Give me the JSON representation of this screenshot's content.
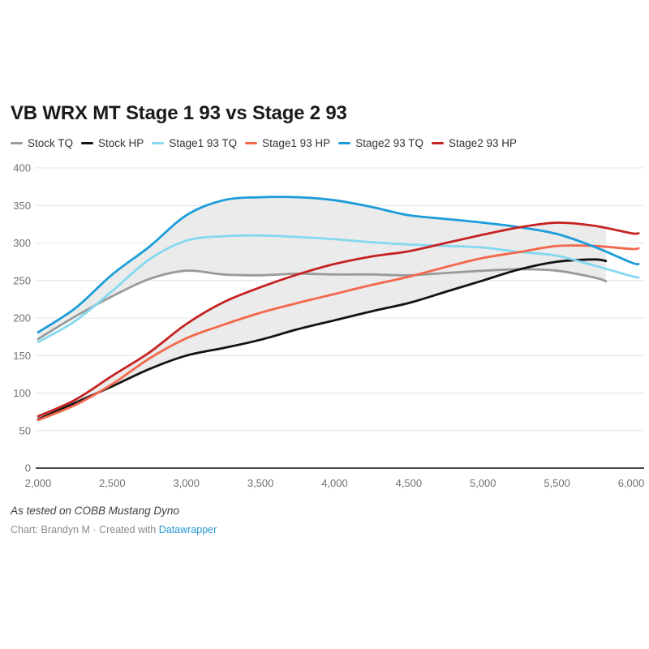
{
  "title": "VB WRX MT Stage 1 93 vs Stage 2 93",
  "legend": [
    {
      "label": "Stock TQ",
      "color": "#9a9a9a"
    },
    {
      "label": "Stock HP",
      "color": "#131313"
    },
    {
      "label": "Stage1 93 TQ",
      "color": "#84d9f1"
    },
    {
      "label": "Stage1 93 HP",
      "color": "#f4674b"
    },
    {
      "label": "Stage2 93 TQ",
      "color": "#1b9dd9"
    },
    {
      "label": "Stage2 93 HP",
      "color": "#c62222"
    }
  ],
  "footer": {
    "note": "As tested on COBB Mustang Dyno",
    "byline_prefix": "Chart: Brandyn M · Created with ",
    "link_label": "Datawrapper",
    "link_color": "#2397d3"
  },
  "chart_data": {
    "type": "line",
    "title": "VB WRX MT Stage 1 93 vs Stage 2 93",
    "xlabel": "",
    "ylabel": "",
    "xlim": [
      2000,
      6050
    ],
    "ylim": [
      0,
      400
    ],
    "grid": true,
    "legend_position": "top",
    "x_tick_values": [
      2000,
      2500,
      3000,
      3500,
      4000,
      4500,
      5000,
      5500,
      6000
    ],
    "x_tick_labels": [
      "2,000",
      "2,500",
      "3,000",
      "3,500",
      "4,000",
      "4,500",
      "5,000",
      "5,500",
      "6,000"
    ],
    "y_tick_values": [
      0,
      50,
      100,
      150,
      200,
      250,
      300,
      350,
      400
    ],
    "y_tick_labels": [
      "0",
      "50",
      "100",
      "150",
      "200",
      "250",
      "300",
      "350",
      "400"
    ],
    "series": [
      {
        "name": "Stock TQ",
        "color": "#9a9a9a",
        "x": [
          2000,
          2250,
          2500,
          2750,
          3000,
          3250,
          3500,
          3750,
          4000,
          4250,
          4500,
          4750,
          5000,
          5250,
          5500,
          5750,
          5830
        ],
        "values": [
          172,
          202,
          229,
          252,
          263,
          258,
          257,
          259,
          258,
          258,
          257,
          260,
          263,
          265,
          263,
          254,
          249
        ]
      },
      {
        "name": "Stock HP",
        "color": "#131313",
        "x": [
          2000,
          2250,
          2500,
          2750,
          3000,
          3250,
          3500,
          3750,
          4000,
          4250,
          4500,
          4750,
          5000,
          5250,
          5500,
          5750,
          5830
        ],
        "values": [
          65,
          87,
          109,
          132,
          150,
          160,
          171,
          185,
          197,
          209,
          220,
          235,
          250,
          265,
          275,
          278,
          276
        ]
      },
      {
        "name": "Stage1 93 TQ",
        "color": "#84d9f1",
        "x": [
          2000,
          2250,
          2500,
          2750,
          3000,
          3250,
          3500,
          3750,
          4000,
          4250,
          4500,
          4750,
          5000,
          5250,
          5500,
          5750,
          6000,
          6050
        ],
        "values": [
          168,
          196,
          236,
          278,
          303,
          309,
          310,
          308,
          305,
          301,
          298,
          296,
          294,
          288,
          283,
          270,
          256,
          254
        ]
      },
      {
        "name": "Stage1 93 HP",
        "color": "#f4674b",
        "x": [
          2000,
          2250,
          2500,
          2750,
          3000,
          3250,
          3500,
          3750,
          4000,
          4250,
          4500,
          4750,
          5000,
          5250,
          5500,
          5750,
          6000,
          6050
        ],
        "values": [
          64,
          84,
          112,
          146,
          173,
          191,
          207,
          220,
          232,
          244,
          255,
          268,
          280,
          288,
          296,
          296,
          292,
          293
        ]
      },
      {
        "name": "Stage2 93 TQ",
        "color": "#1b9dd9",
        "x": [
          2000,
          2250,
          2500,
          2750,
          3000,
          3250,
          3500,
          3750,
          4000,
          4250,
          4500,
          4750,
          5000,
          5250,
          5500,
          5750,
          6000,
          6050
        ],
        "values": [
          181,
          213,
          258,
          295,
          337,
          357,
          361,
          361,
          357,
          348,
          337,
          332,
          327,
          321,
          312,
          295,
          274,
          272
        ]
      },
      {
        "name": "Stage2 93 HP",
        "color": "#c62222",
        "x": [
          2000,
          2250,
          2500,
          2750,
          3000,
          3250,
          3500,
          3750,
          4000,
          4250,
          4500,
          4750,
          5000,
          5250,
          5500,
          5750,
          6000,
          6050
        ],
        "values": [
          69,
          91,
          123,
          154,
          192,
          221,
          241,
          258,
          272,
          282,
          289,
          300,
          311,
          321,
          327,
          323,
          313,
          313
        ]
      }
    ],
    "shaded_bands": [
      {
        "upper": "Stage2 93 TQ",
        "lower": "Stock TQ",
        "color": "#ebebeb"
      },
      {
        "upper": "Stage2 93 HP",
        "lower": "Stock HP",
        "color": "#ebebeb"
      }
    ],
    "grid_color": "#e4e4e4",
    "baseline_color": "#4a4a4a",
    "axis_text_color": "#707070"
  }
}
